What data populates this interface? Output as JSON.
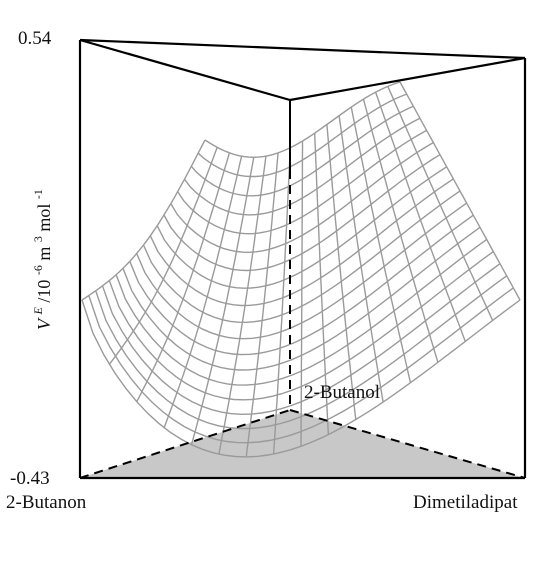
{
  "chart_data": {
    "type": "surface",
    "y_range_label_top": "0.54",
    "y_range_label_bottom": "-0.43",
    "ylim": [
      -0.43,
      0.54
    ],
    "y_axis_label": {
      "symbol": "V",
      "superscript": "E",
      "unit_text": "/10",
      "unit_exponent": "-6",
      "unit_m": " m",
      "m_exponent": "3",
      "unit_mol": " mol",
      "mol_exponent": "-1"
    },
    "components": {
      "left_bottom": "2-Butanon",
      "right_bottom": "Dimetiladipat",
      "back": "2-Butanol"
    },
    "surface_grid": {
      "u_lines": 17,
      "v_lines": 19
    },
    "colors": {
      "frame": "#000000",
      "mesh": "#9a9a9a",
      "base_fill": "#c8c8c8"
    }
  }
}
